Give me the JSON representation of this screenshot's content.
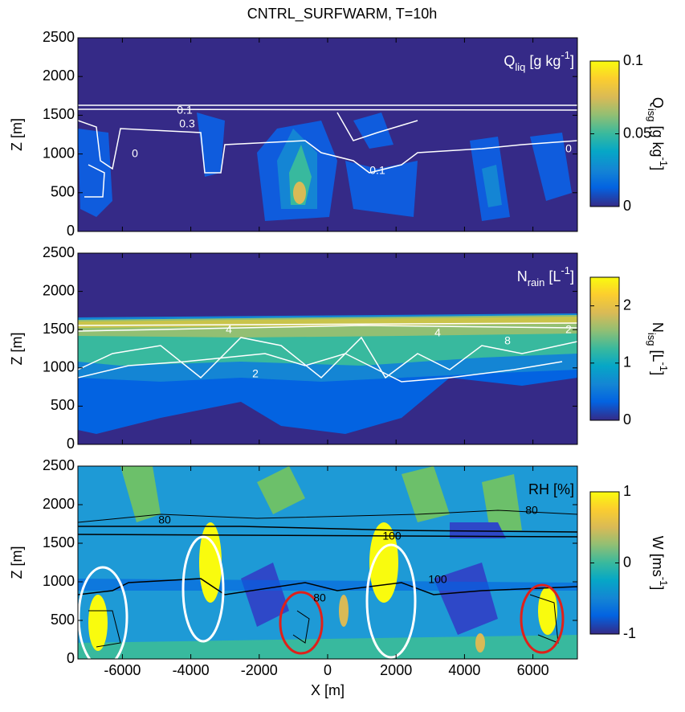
{
  "title": "CNTRL_SURFWARM, T=10h",
  "chart_data": [
    {
      "type": "contour",
      "ylabel": "Z [m]",
      "xlim": [
        -7300,
        7300
      ],
      "xticks": [
        -6000,
        -4000,
        -2000,
        0,
        2000,
        4000,
        6000
      ],
      "ylim": [
        0,
        2500
      ],
      "yticks": [
        0,
        500,
        1000,
        1500,
        2000,
        2500
      ],
      "annotation": {
        "base": "Q",
        "sub": "liq",
        "rest": " [g kg",
        "sup": "-1",
        "end": "]"
      },
      "annotation_color": "#ffffff",
      "contour_color": "#ffffff",
      "contour_labels": [
        "0.1",
        "0.3",
        "0",
        "0.1",
        "0"
      ],
      "colorbar": {
        "label": {
          "base": "Q",
          "sub": "isg",
          "rest": " [g kg",
          "sup": "-1",
          "end": "]"
        },
        "lim": [
          0,
          0.1
        ],
        "ticks": [
          0,
          0.05,
          0.1
        ]
      }
    },
    {
      "type": "contour",
      "ylabel": "Z [m]",
      "xlim": [
        -7300,
        7300
      ],
      "xticks": [
        -6000,
        -4000,
        -2000,
        0,
        2000,
        4000,
        6000
      ],
      "ylim": [
        0,
        2500
      ],
      "yticks": [
        0,
        500,
        1000,
        1500,
        2000,
        2500
      ],
      "annotation": {
        "base": "N",
        "sub": "rain",
        "rest": " [L",
        "sup": "-1",
        "end": "]"
      },
      "annotation_color": "#ffffff",
      "contour_color": "#ffffff",
      "contour_labels": [
        "4",
        "2",
        "4",
        "8",
        "2"
      ],
      "colorbar": {
        "label": {
          "base": "N",
          "sub": "isg",
          "rest": " [L",
          "sup": "-1",
          "end": "]"
        },
        "lim": [
          0,
          2.5
        ],
        "ticks": [
          0,
          1,
          2
        ]
      }
    },
    {
      "type": "contour",
      "ylabel": "Z [m]",
      "xlabel": "X [m]",
      "xlim": [
        -7300,
        7300
      ],
      "xticks": [
        -6000,
        -4000,
        -2000,
        0,
        2000,
        4000,
        6000
      ],
      "ylim": [
        0,
        2500
      ],
      "yticks": [
        0,
        500,
        1000,
        1500,
        2000,
        2500
      ],
      "annotation": {
        "base": "RH [%]"
      },
      "annotation_color": "#000000",
      "contour_color": "#000000",
      "contour_labels": [
        "80",
        "100",
        "80",
        "100",
        "80"
      ],
      "colorbar": {
        "label": {
          "base": "W [ms",
          "sup": "-1",
          "end": "]"
        },
        "lim": [
          -1,
          1
        ],
        "ticks": [
          -1,
          0,
          1
        ]
      }
    }
  ]
}
